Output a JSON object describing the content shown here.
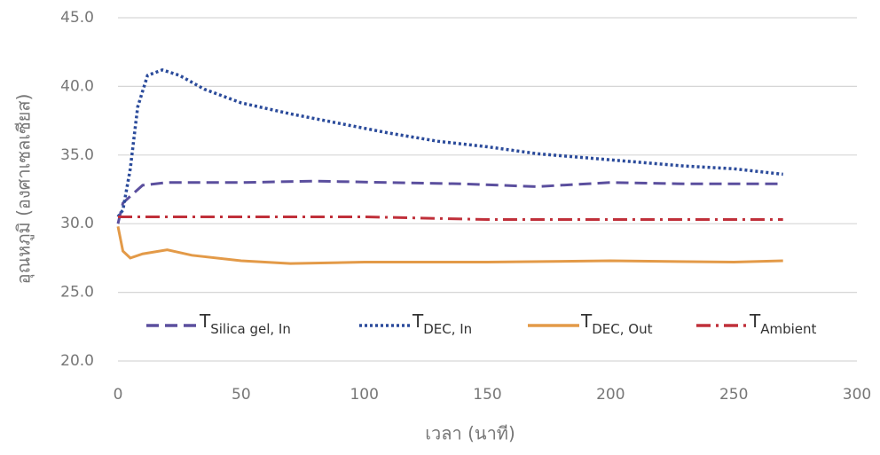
{
  "chart_data": {
    "type": "line",
    "xlabel": "เวลา (นาที)",
    "ylabel": "อุณหภูมิ (องศาเซลเซียส)",
    "xlim": [
      0,
      300
    ],
    "xticks": [
      0,
      50,
      100,
      150,
      200,
      250,
      300
    ],
    "ylim": [
      20,
      45
    ],
    "yticks": [
      {
        "value": 20,
        "label": "20.0"
      },
      {
        "value": 25,
        "label": "25.0"
      },
      {
        "value": 30,
        "label": "30.0"
      },
      {
        "value": 35,
        "label": "35.0"
      },
      {
        "value": 40,
        "label": "40.0"
      },
      {
        "value": 45,
        "label": "45.0"
      }
    ],
    "grid": true,
    "series": [
      {
        "name": [
          "T",
          "Silica gel, In"
        ],
        "color": "#5b4f9e",
        "style": "dashed",
        "x": [
          0,
          2,
          5,
          10,
          20,
          50,
          80,
          110,
          140,
          170,
          200,
          230,
          270
        ],
        "values": [
          30,
          31.5,
          32,
          32.8,
          33,
          33,
          33.1,
          33,
          32.9,
          32.7,
          33,
          32.9,
          32.9
        ]
      },
      {
        "name": [
          "T",
          "DEC, In"
        ],
        "color": "#2b4b9b",
        "style": "dotted",
        "x": [
          0,
          2,
          5,
          8,
          12,
          18,
          25,
          35,
          50,
          70,
          90,
          110,
          130,
          150,
          170,
          190,
          210,
          230,
          250,
          270
        ],
        "values": [
          30.5,
          31,
          34,
          38.5,
          40.8,
          41.2,
          40.8,
          39.8,
          38.8,
          38,
          37.3,
          36.6,
          36,
          35.6,
          35.1,
          34.8,
          34.5,
          34.2,
          34,
          33.6
        ]
      },
      {
        "name": [
          "T",
          "DEC, Out"
        ],
        "color": "#e39a48",
        "style": "solid",
        "x": [
          0,
          2,
          5,
          10,
          20,
          30,
          50,
          70,
          100,
          150,
          200,
          250,
          270
        ],
        "values": [
          29.8,
          28,
          27.5,
          27.8,
          28.1,
          27.7,
          27.3,
          27.1,
          27.2,
          27.2,
          27.3,
          27.2,
          27.3
        ]
      },
      {
        "name": [
          "T",
          "Ambient"
        ],
        "color": "#c0303a",
        "style": "dashdot",
        "x": [
          0,
          50,
          100,
          150,
          200,
          250,
          270
        ],
        "values": [
          30.5,
          30.5,
          30.5,
          30.3,
          30.3,
          30.3,
          30.3
        ]
      }
    ]
  }
}
